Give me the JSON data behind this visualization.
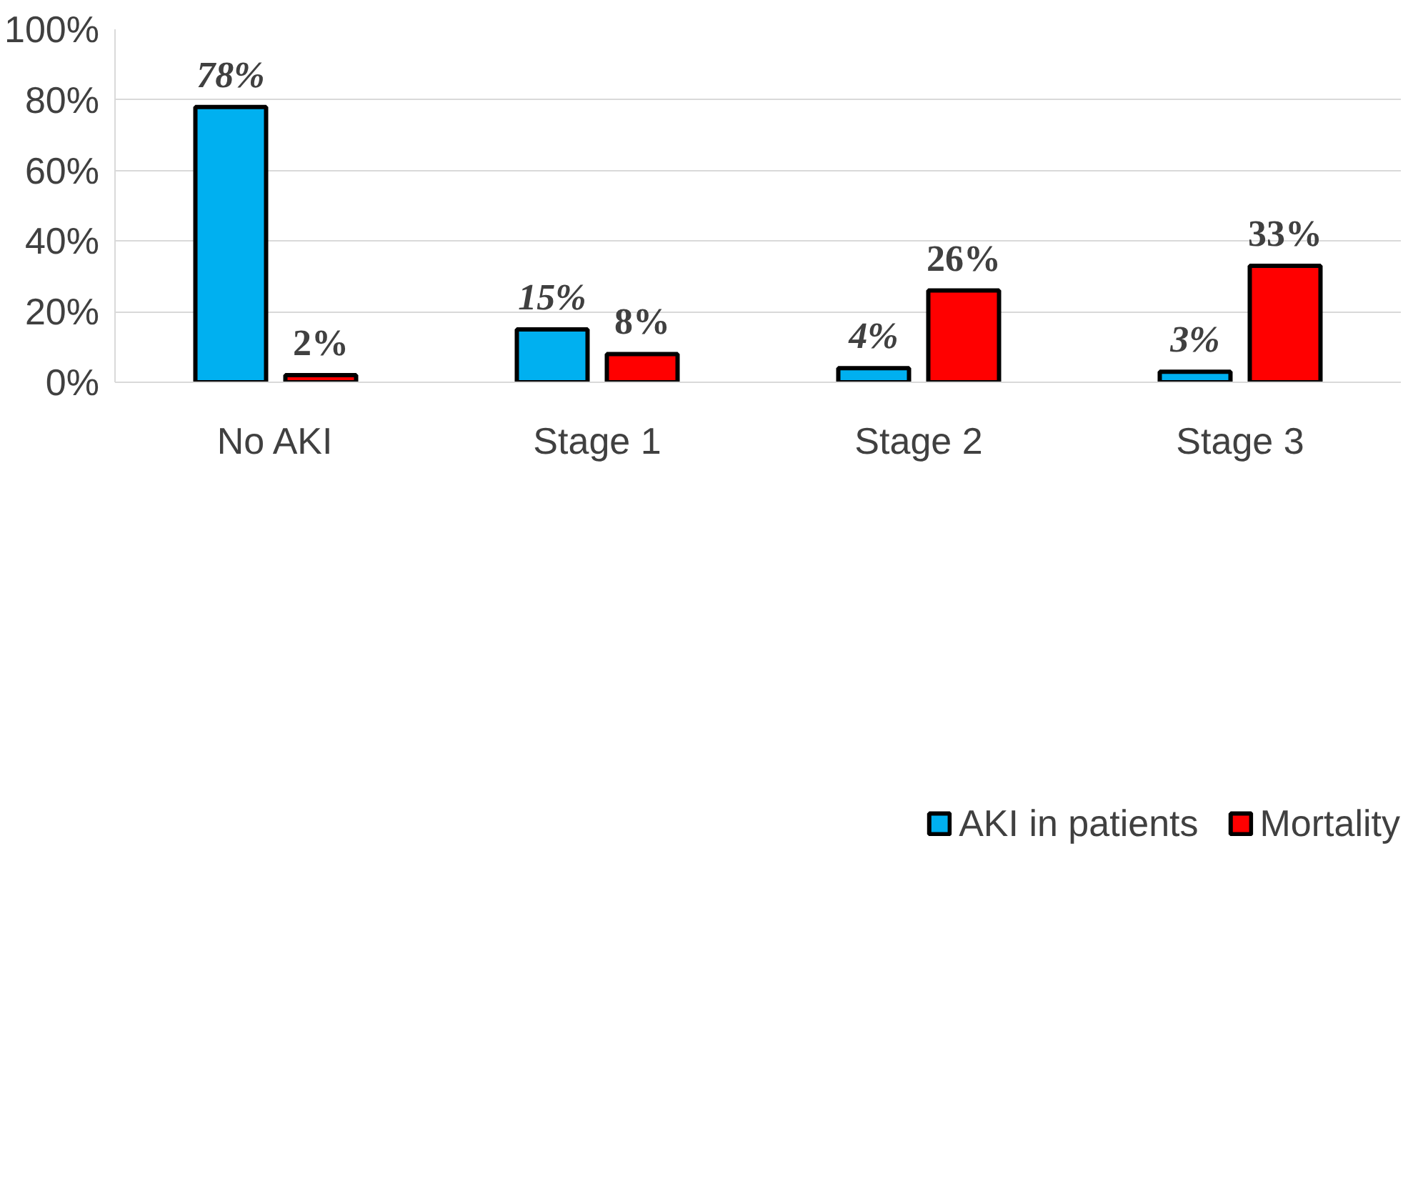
{
  "chart_data": {
    "type": "bar",
    "categories": [
      "No AKI",
      "Stage 1",
      "Stage 2",
      "Stage 3"
    ],
    "series": [
      {
        "name": "AKI in patients",
        "color": "#00b0f0",
        "values": [
          78,
          15,
          4,
          3
        ],
        "value_labels": [
          "78%",
          "15%",
          "4%",
          "3%"
        ]
      },
      {
        "name": "Mortality",
        "color": "#ff0000",
        "values": [
          2,
          8,
          26,
          33
        ],
        "value_labels": [
          "2%",
          "8%",
          "26%",
          "33%"
        ]
      }
    ],
    "ylim": [
      0,
      100
    ],
    "yticks": [
      {
        "value": 0,
        "label": "0%"
      },
      {
        "value": 20,
        "label": "20%"
      },
      {
        "value": 40,
        "label": "40%"
      },
      {
        "value": 60,
        "label": "60%"
      },
      {
        "value": 80,
        "label": "80%"
      },
      {
        "value": 100,
        "label": "100%"
      }
    ],
    "grid": "y",
    "legend": "bottom"
  }
}
